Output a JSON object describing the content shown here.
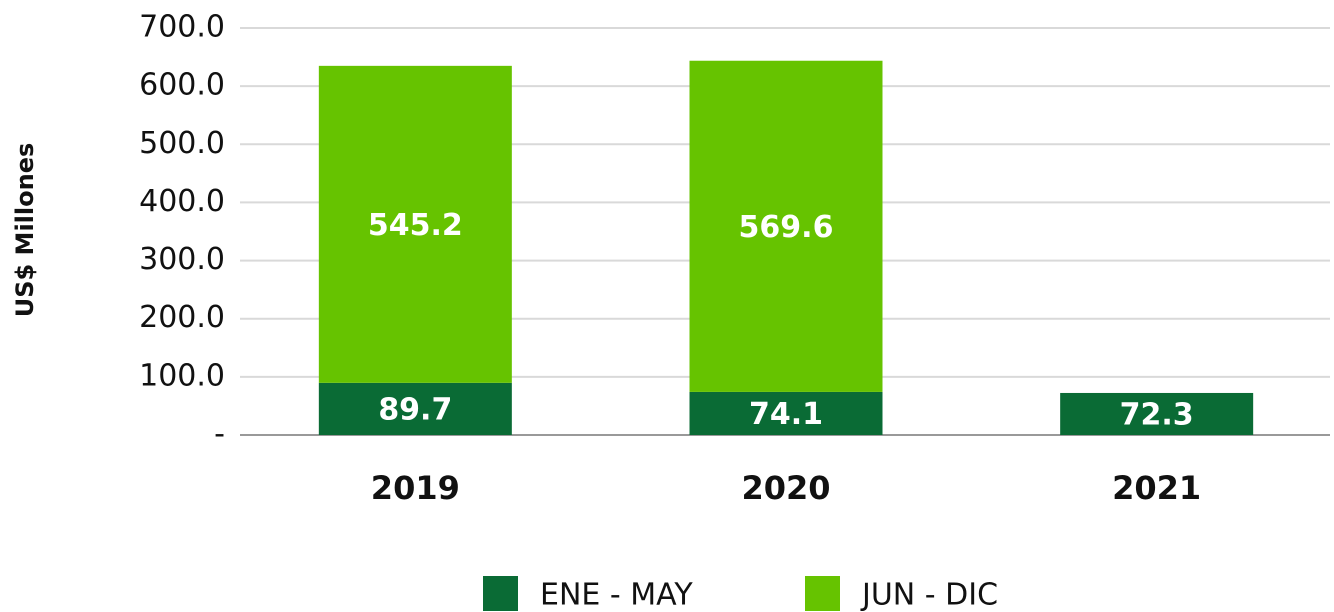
{
  "chart_data": {
    "type": "stacked_bar",
    "y_label": "US$ Millones",
    "categories": [
      "2019",
      "2020",
      "2021"
    ],
    "series": [
      {
        "name": "ENE - MAY",
        "color": "#0a6b35",
        "values": [
          89.7,
          74.1,
          72.3
        ]
      },
      {
        "name": "JUN - DIC",
        "color": "#66c300",
        "values": [
          545.2,
          569.6,
          null
        ]
      }
    ],
    "ylim": [
      0,
      700
    ],
    "yticks": [
      {
        "value": 0,
        "label": "-"
      },
      {
        "value": 100,
        "label": "100.0"
      },
      {
        "value": 200,
        "label": "200.0"
      },
      {
        "value": 300,
        "label": "300.0"
      },
      {
        "value": 400,
        "label": "400.0"
      },
      {
        "value": 500,
        "label": "500.0"
      },
      {
        "value": 600,
        "label": "600.0"
      },
      {
        "value": 700,
        "label": "700.0"
      }
    ],
    "grid": true
  }
}
